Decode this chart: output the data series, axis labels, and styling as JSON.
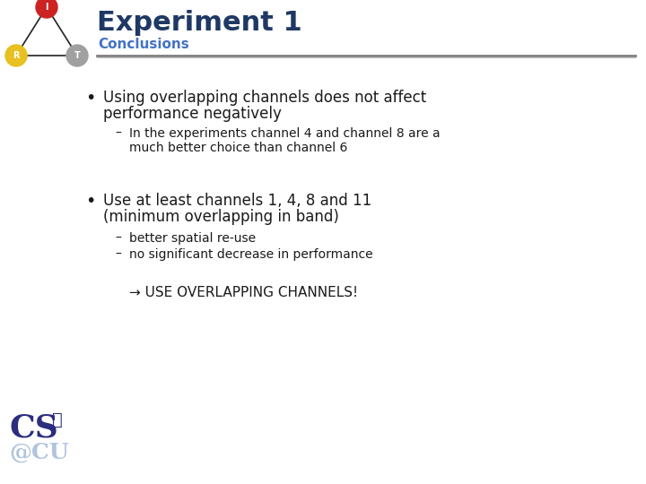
{
  "title": "Experiment 1",
  "subtitle": "Conclusions",
  "title_color": "#1F3864",
  "subtitle_color": "#4472C4",
  "background_color": "#FFFFFF",
  "bullet1_line1": "Using overlapping channels does not affect",
  "bullet1_line2": "performance negatively",
  "sub1_line1": "In the experiments channel 4 and channel 8 are a",
  "sub1_line2": "much better choice than channel 6",
  "bullet2_line1": "Use at least channels 1, 4, 8 and 11",
  "bullet2_line2": "(minimum overlapping in band)",
  "sub2a": "better spatial re-use",
  "sub2b": "no significant decrease in performance",
  "conclusion": "→ USE OVERLAPPING CHANNELS!",
  "text_color": "#1a1a1a",
  "line_color_dark": "#808080",
  "line_color_light": "#C0C0C0",
  "node_I_color": "#CC2222",
  "node_R_color": "#E8C020",
  "node_T_color": "#A0A0A0",
  "cs_color": "#2B2D7E",
  "at_color": "#B0C4DE"
}
